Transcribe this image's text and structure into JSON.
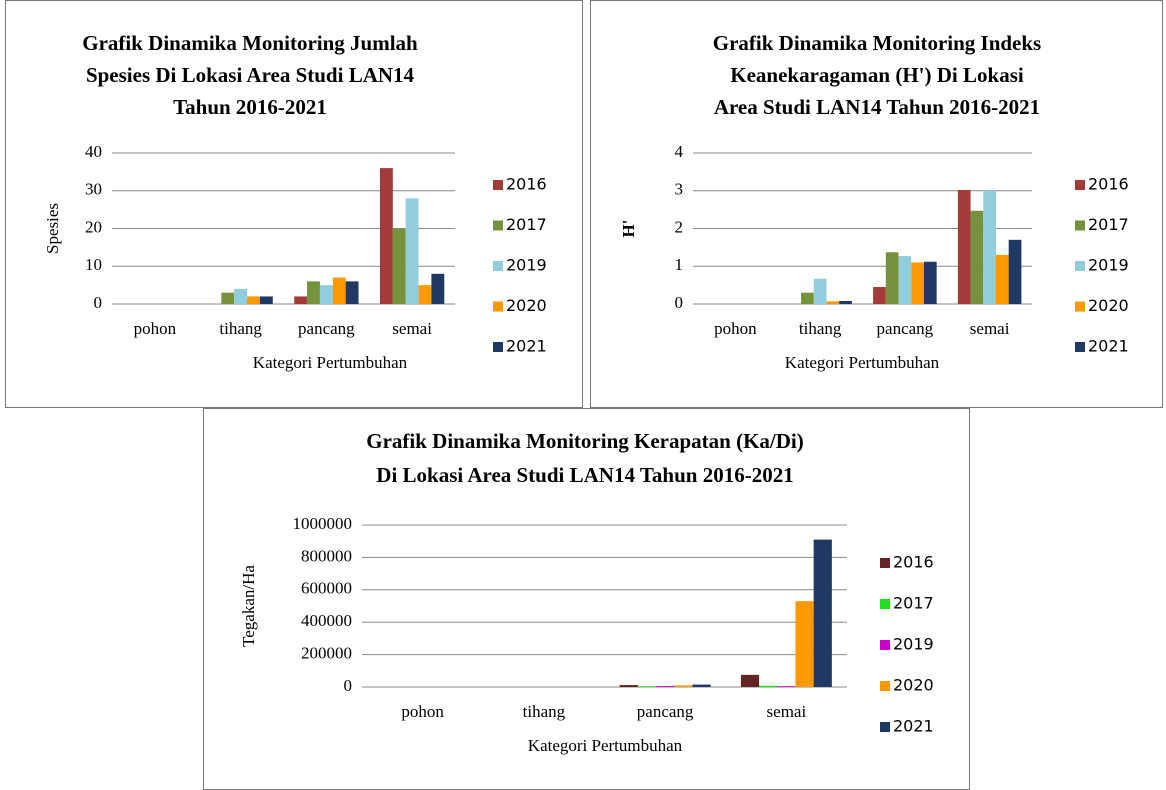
{
  "chart_data": [
    {
      "type": "bar",
      "title": [
        "Grafik Dinamika Monitoring Jumlah",
        "Spesies Di Lokasi Area Studi LAN14",
        "Tahun 2016-2021"
      ],
      "y_label": "Spesies",
      "x_label": "Kategori  Pertumbuhan",
      "categories": [
        "pohon",
        "tihang",
        "pancang",
        "semai"
      ],
      "series": [
        {
          "name": "2016",
          "color": "#a33b38",
          "values": [
            0,
            0,
            2,
            36
          ]
        },
        {
          "name": "2017",
          "color": "#76923c",
          "values": [
            0,
            3,
            6,
            20
          ]
        },
        {
          "name": "2019",
          "color": "#92cddc",
          "values": [
            0,
            4,
            5,
            28
          ]
        },
        {
          "name": "2020",
          "color": "#ff9900",
          "values": [
            0,
            2,
            7,
            5
          ]
        },
        {
          "name": "2021",
          "color": "#1f3864",
          "values": [
            0,
            2,
            6,
            8
          ]
        }
      ],
      "ylim": [
        0,
        40
      ],
      "yticks": [
        0,
        10,
        20,
        30,
        40
      ],
      "grid": true,
      "legend": "right"
    },
    {
      "type": "bar",
      "title": [
        "Grafik Dinamika Monitoring Indeks",
        "Keanekaragaman (H') Di Lokasi",
        "Area Studi LAN14 Tahun 2016-2021"
      ],
      "y_label": "H'",
      "x_label": "Kategori Pertumbuhan",
      "categories": [
        "pohon",
        "tihang",
        "pancang",
        "semai"
      ],
      "series": [
        {
          "name": "2016",
          "color": "#a33b38",
          "values": [
            0,
            0,
            0.45,
            3.02
          ]
        },
        {
          "name": "2017",
          "color": "#76923c",
          "values": [
            0,
            0.3,
            1.37,
            2.47
          ]
        },
        {
          "name": "2019",
          "color": "#92cddc",
          "values": [
            0,
            0.67,
            1.27,
            3.0
          ]
        },
        {
          "name": "2020",
          "color": "#ff9900",
          "values": [
            0,
            0.07,
            1.1,
            1.3
          ]
        },
        {
          "name": "2021",
          "color": "#1f3864",
          "values": [
            0,
            0.08,
            1.12,
            1.7
          ]
        }
      ],
      "ylim": [
        0,
        4
      ],
      "yticks": [
        0,
        1,
        2,
        3,
        4
      ],
      "grid": true,
      "legend": "right"
    },
    {
      "type": "bar",
      "title": [
        "Grafik Dinamika Monitoring Kerapatan (Ka/Di)",
        "Di Lokasi Area Studi LAN14 Tahun 2016-2021"
      ],
      "y_label": "Tegakan/Ha",
      "x_label": "Kategori Pertumbuhan",
      "categories": [
        "pohon",
        "tihang",
        "pancang",
        "semai"
      ],
      "series": [
        {
          "name": "2016",
          "color": "#632523",
          "values": [
            0,
            0,
            12000,
            75000
          ]
        },
        {
          "name": "2017",
          "color": "#22dd22",
          "values": [
            0,
            0,
            5000,
            8000
          ]
        },
        {
          "name": "2019",
          "color": "#cc00cc",
          "values": [
            0,
            0,
            6000,
            5000
          ]
        },
        {
          "name": "2020",
          "color": "#ff9900",
          "values": [
            0,
            0,
            10000,
            530000
          ]
        },
        {
          "name": "2021",
          "color": "#1f3864",
          "values": [
            0,
            0,
            15000,
            910000
          ]
        }
      ],
      "ylim": [
        0,
        1000000
      ],
      "yticks": [
        0,
        200000,
        400000,
        600000,
        800000,
        1000000
      ],
      "grid": true,
      "legend": "right"
    }
  ]
}
